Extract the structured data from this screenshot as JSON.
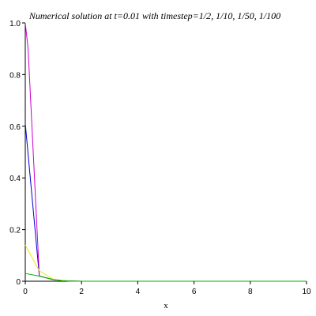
{
  "chart_data": {
    "type": "line",
    "title": "Numerical solution at t=0.01 with timestep=1/2, 1/10, 1/50, 1/100",
    "xlabel": "x",
    "ylabel": "",
    "xlim": [
      0,
      10
    ],
    "ylim": [
      0,
      1.0
    ],
    "x_ticks": [
      "0",
      "2",
      "4",
      "6",
      "8",
      "10"
    ],
    "y_ticks": [
      "0",
      "0.2",
      "0.4",
      "0.6",
      "0.8",
      "1.0"
    ],
    "x_tick_values": [
      0,
      2,
      4,
      6,
      8,
      10
    ],
    "y_tick_values": [
      0,
      0.2,
      0.4,
      0.6,
      0.8,
      1.0
    ],
    "grid": false,
    "series": [
      {
        "color": "#0000cc",
        "points": [
          [
            0,
            0.61
          ],
          [
            0.5,
            0.02
          ],
          [
            1.0,
            0.006
          ],
          [
            1.5,
            0.001
          ],
          [
            2.0,
            0
          ],
          [
            10,
            0
          ]
        ]
      },
      {
        "color": "#cc00cc",
        "points": [
          [
            0,
            1.0
          ],
          [
            0.1,
            0.9
          ],
          [
            0.5,
            0.02
          ],
          [
            1.0,
            0.006
          ],
          [
            1.5,
            0.001
          ],
          [
            2.0,
            0
          ],
          [
            10,
            0
          ]
        ]
      },
      {
        "color": "#e8e800",
        "points": [
          [
            0,
            0.14
          ],
          [
            0.5,
            0.04
          ],
          [
            1.0,
            0.008
          ],
          [
            1.5,
            0.001
          ],
          [
            2.0,
            0
          ],
          [
            10,
            0
          ]
        ]
      },
      {
        "color": "#00b000",
        "points": [
          [
            0,
            0.03
          ],
          [
            0.5,
            0.02
          ],
          [
            1.0,
            0.006
          ],
          [
            1.3,
            0.002
          ],
          [
            2.0,
            0
          ],
          [
            10,
            0
          ]
        ]
      }
    ]
  }
}
